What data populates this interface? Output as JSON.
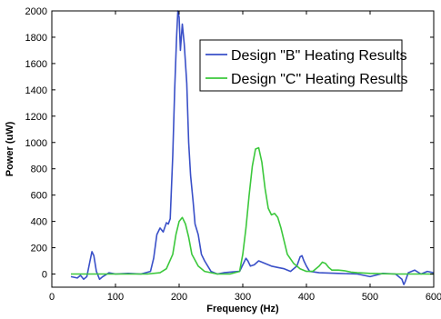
{
  "chart_data": {
    "type": "line",
    "xlabel": "Frequency (Hz)",
    "ylabel": "Power (uW)",
    "xlim": [
      0,
      600
    ],
    "ylim": [
      -100,
      2000
    ],
    "xticks": [
      0,
      100,
      200,
      300,
      400,
      500,
      600
    ],
    "yticks": [
      0,
      200,
      400,
      600,
      800,
      1000,
      1200,
      1400,
      1600,
      1800,
      2000
    ],
    "grid": false,
    "legend": "top-right",
    "series": [
      {
        "name": "Design \"B\" Heating Results",
        "color": "#3a50c8",
        "x": [
          30,
          40,
          45,
          50,
          55,
          60,
          63,
          66,
          70,
          75,
          80,
          90,
          100,
          120,
          140,
          155,
          160,
          165,
          170,
          175,
          180,
          183,
          186,
          190,
          193,
          196,
          198,
          200,
          202,
          205,
          208,
          212,
          215,
          218,
          222,
          225,
          230,
          235,
          240,
          250,
          260,
          270,
          280,
          295,
          300,
          305,
          308,
          312,
          318,
          325,
          335,
          345,
          355,
          365,
          375,
          385,
          390,
          393,
          396,
          400,
          405,
          420,
          450,
          480,
          500,
          520,
          540,
          550,
          553,
          555,
          560,
          570,
          580,
          590,
          600
        ],
        "y": [
          -20,
          -30,
          -10,
          -40,
          -20,
          100,
          170,
          140,
          20,
          -40,
          -20,
          10,
          0,
          5,
          0,
          20,
          120,
          300,
          350,
          320,
          390,
          380,
          420,
          900,
          1400,
          1800,
          2000,
          1950,
          1700,
          1900,
          1750,
          1450,
          1000,
          750,
          550,
          380,
          300,
          150,
          100,
          20,
          0,
          10,
          15,
          20,
          70,
          120,
          100,
          60,
          70,
          100,
          80,
          60,
          50,
          40,
          20,
          60,
          130,
          140,
          100,
          60,
          20,
          10,
          5,
          0,
          -20,
          5,
          0,
          -40,
          -80,
          -60,
          10,
          30,
          0,
          20,
          10
        ]
      },
      {
        "name": "Design \"C\" Heating Results",
        "color": "#3cc83c",
        "x": [
          30,
          100,
          150,
          170,
          180,
          190,
          195,
          200,
          205,
          210,
          215,
          220,
          230,
          240,
          260,
          280,
          295,
          300,
          305,
          310,
          315,
          320,
          325,
          330,
          335,
          340,
          345,
          350,
          355,
          360,
          365,
          370,
          380,
          390,
          400,
          410,
          420,
          425,
          430,
          435,
          440,
          445,
          450,
          460,
          470,
          480,
          500,
          540,
          560,
          580,
          600
        ],
        "y": [
          0,
          0,
          0,
          10,
          40,
          150,
          300,
          400,
          430,
          380,
          280,
          150,
          60,
          20,
          0,
          0,
          20,
          150,
          350,
          600,
          820,
          950,
          960,
          850,
          650,
          500,
          450,
          460,
          430,
          350,
          250,
          150,
          80,
          40,
          20,
          20,
          60,
          90,
          80,
          50,
          30,
          30,
          30,
          25,
          15,
          10,
          5,
          0,
          0,
          0,
          0
        ]
      }
    ]
  }
}
